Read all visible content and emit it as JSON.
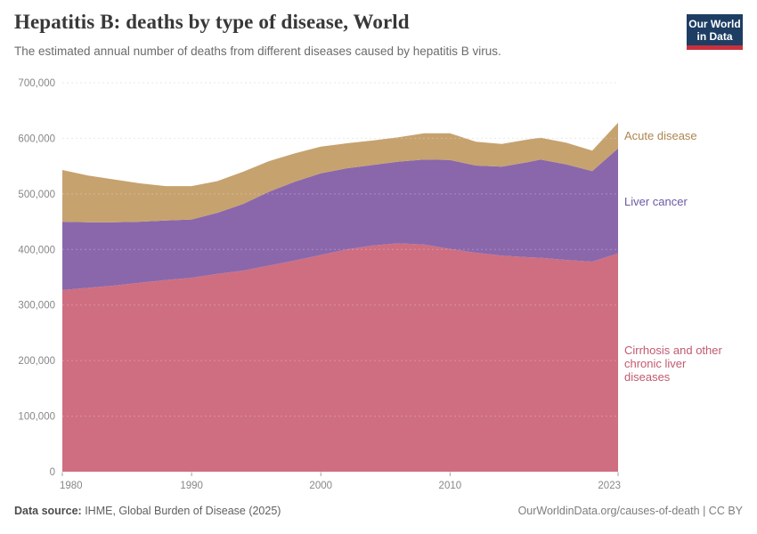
{
  "header": {
    "title": "Hepatitis B: deaths by type of disease, World",
    "subtitle": "The estimated annual number of deaths from different diseases caused by hepatitis B virus.",
    "logo": {
      "line1": "Our World",
      "line2": "in Data",
      "bg_color": "#1d3d63",
      "bar_color": "#c9303e"
    }
  },
  "chart_data": {
    "type": "area",
    "stacked": true,
    "title": "Hepatitis B: deaths by type of disease, World",
    "xlabel": "",
    "ylabel": "",
    "grid": "horizontal-dashed",
    "legend_position": "right-of-plot",
    "xlim": [
      1980,
      2023
    ],
    "ylim": [
      0,
      700000
    ],
    "x": [
      1980,
      1982,
      1984,
      1986,
      1988,
      1990,
      1992,
      1994,
      1996,
      1998,
      2000,
      2002,
      2004,
      2006,
      2008,
      2010,
      2012,
      2014,
      2016,
      2017,
      2019,
      2021,
      2023
    ],
    "series": [
      {
        "name": "Cirrhosis and other chronic liver diseases",
        "color": "#cf6e80",
        "label_color": "#c05a6f",
        "values": [
          327000,
          331000,
          335000,
          340000,
          345000,
          349000,
          356000,
          362000,
          371000,
          380000,
          390000,
          400000,
          407000,
          411000,
          409000,
          401000,
          394000,
          389000,
          386000,
          385000,
          381000,
          378000,
          393000
        ]
      },
      {
        "name": "Liver cancer",
        "color": "#8a67ab",
        "label_color": "#6d58a5",
        "values": [
          123000,
          118000,
          114000,
          110000,
          107000,
          105000,
          110000,
          120000,
          133000,
          142000,
          147000,
          146000,
          145000,
          147000,
          153000,
          160000,
          157000,
          160000,
          171000,
          177000,
          172000,
          163000,
          189000
        ]
      },
      {
        "name": "Acute disease",
        "color": "#c6a26f",
        "label_color": "#ae864e",
        "values": [
          93000,
          84000,
          77000,
          69000,
          62000,
          60000,
          57000,
          58000,
          55000,
          51000,
          48000,
          45000,
          44000,
          44000,
          47000,
          48000,
          43000,
          41000,
          41000,
          39000,
          39000,
          37000,
          46000
        ]
      }
    ],
    "yticks": {
      "values": [
        0,
        100000,
        200000,
        300000,
        400000,
        500000,
        600000,
        700000
      ],
      "labels": [
        "0",
        "100,000",
        "200,000",
        "300,000",
        "400,000",
        "500,000",
        "600,000",
        "700,000"
      ]
    },
    "xticks": {
      "values": [
        1980,
        1990,
        2000,
        2010,
        2023
      ],
      "labels": [
        "1980",
        "1990",
        "2000",
        "2010",
        "2023"
      ]
    }
  },
  "footer": {
    "source_label": "Data source:",
    "source_value": " IHME, Global Burden of Disease (2025)",
    "license": "OurWorldinData.org/causes-of-death | CC BY"
  },
  "colors": {
    "gridline": "#e2e2e2",
    "axis_text": "#878787",
    "tick": "#a3a3a3"
  }
}
